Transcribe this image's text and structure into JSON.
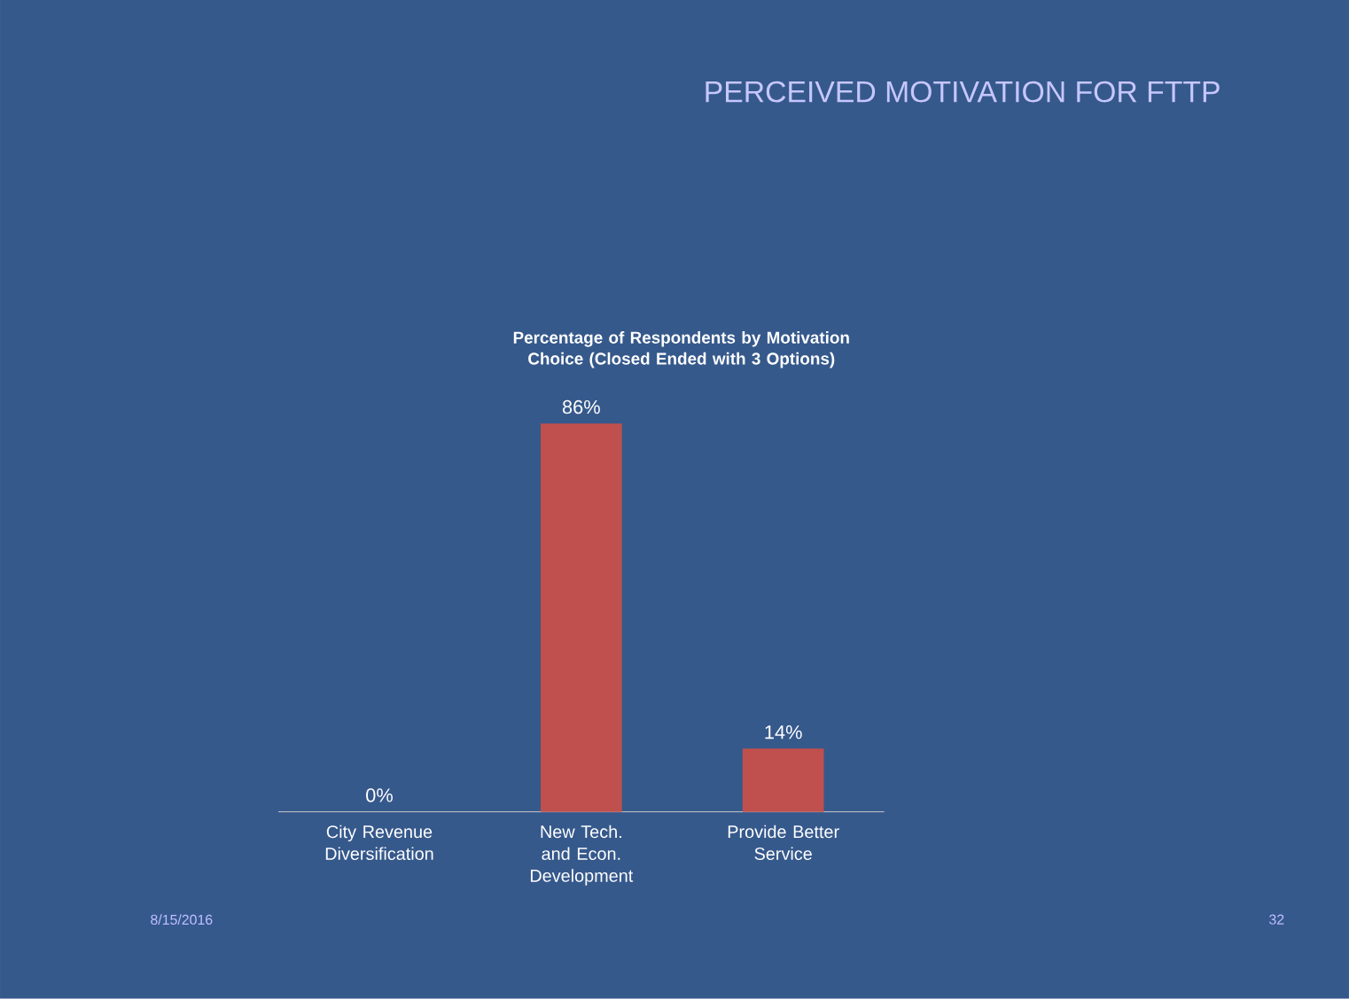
{
  "chart_data": {
    "type": "bar",
    "title": "PERCEIVED MOTIVATION FOR FTTP",
    "subtitle": "Percentage of Respondents by Motivation Choice (Closed Ended with 3 Options)",
    "categories": [
      "City Revenue Diversification",
      "New Tech. and Econ. Development",
      "Provide Better Service"
    ],
    "values": [
      0,
      86,
      14
    ],
    "color": "#c0504d",
    "value_labels": [
      "0%",
      "86%",
      "14%"
    ],
    "annotations": [
      "8/15/2016",
      "32"
    ]
  }
}
